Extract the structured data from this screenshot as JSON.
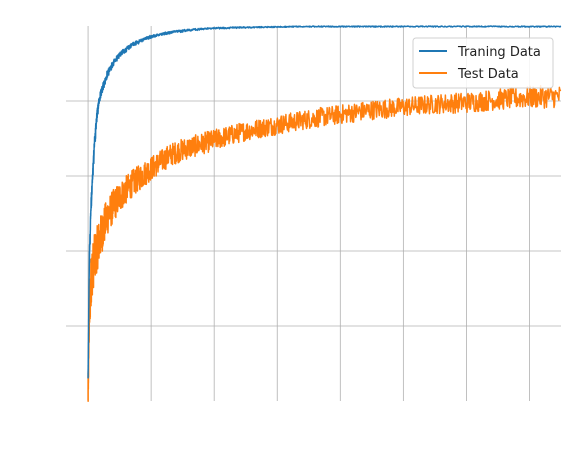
{
  "chart_data": {
    "type": "line",
    "title": "",
    "xlabel": "",
    "ylabel": "",
    "xlim": [
      -0.35,
      7.5
    ],
    "ylim": [
      0,
      5
    ],
    "x_ticks": [
      0,
      1,
      2,
      3,
      4,
      5,
      6,
      7
    ],
    "y_ticks": [
      1,
      2,
      3,
      4
    ],
    "tick_labels_shown": false,
    "grid": true,
    "legend_position": "top-right",
    "series": [
      {
        "name": "Traning Data",
        "color": "#1f77b4",
        "x": [
          0,
          0.02,
          0.05,
          0.08,
          0.1,
          0.15,
          0.2,
          0.3,
          0.4,
          0.5,
          0.7,
          1.0,
          1.3,
          1.6,
          2.0,
          2.5,
          3.0,
          3.5,
          4.0,
          5.0,
          6.0,
          7.0,
          7.5
        ],
        "y": [
          0.35,
          2.0,
          2.75,
          3.2,
          3.5,
          3.95,
          4.15,
          4.4,
          4.55,
          4.65,
          4.78,
          4.88,
          4.93,
          4.96,
          4.98,
          4.99,
          4.995,
          5.0,
          5.0,
          5.0,
          5.0,
          5.0,
          5.0
        ],
        "noise": [
          0.1,
          0.3,
          0.35,
          0.3,
          0.28,
          0.22,
          0.18,
          0.14,
          0.12,
          0.1,
          0.08,
          0.06,
          0.05,
          0.04,
          0.03,
          0.025,
          0.02,
          0.02,
          0.02,
          0.02,
          0.02,
          0.02,
          0.02
        ]
      },
      {
        "name": "Test Data",
        "color": "#ff7f0e",
        "x": [
          0,
          0.02,
          0.05,
          0.1,
          0.2,
          0.3,
          0.4,
          0.5,
          0.7,
          1.0,
          1.3,
          1.5,
          2.0,
          2.5,
          3.0,
          3.5,
          4.0,
          4.5,
          5.0,
          5.5,
          6.0,
          6.5,
          7.0,
          7.5
        ],
        "y": [
          0.1,
          1.2,
          1.65,
          1.9,
          2.2,
          2.45,
          2.6,
          2.72,
          2.9,
          3.1,
          3.28,
          3.35,
          3.48,
          3.6,
          3.68,
          3.76,
          3.82,
          3.88,
          3.92,
          3.96,
          3.98,
          4.02,
          4.05,
          4.06
        ]
      }
    ],
    "noise_band": [
      0.25,
      0.4,
      0.35,
      0.32,
      0.28,
      0.25,
      0.22,
      0.2,
      0.18,
      0.16,
      0.15,
      0.15,
      0.14,
      0.13,
      0.13,
      0.13,
      0.13,
      0.13,
      0.13,
      0.13,
      0.14,
      0.14,
      0.15,
      0.15
    ]
  }
}
